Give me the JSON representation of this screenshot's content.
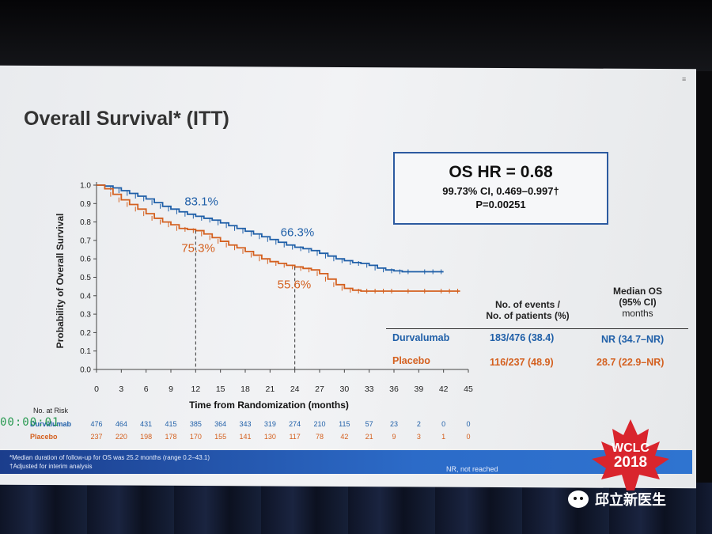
{
  "slide": {
    "title": "Overall Survival* (ITT)",
    "hr_box": {
      "hr": "OS HR = 0.68",
      "ci": "99.73% CI, 0.469–0.997†",
      "p": "P=0.00251"
    },
    "table": {
      "header_events": [
        "No. of events /",
        "No. of patients (%)"
      ],
      "header_median": [
        "Median OS",
        "(95% CI)",
        "months"
      ],
      "rows": [
        {
          "arm": "Durvalumab",
          "events": "183/476 (38.4)",
          "median": "NR (34.7–NR)",
          "color": "#1f5fa8"
        },
        {
          "arm": "Placebo",
          "events": "116/237 (48.9)",
          "median": "28.7 (22.9–NR)",
          "color": "#d4601f"
        }
      ]
    },
    "at_risk": {
      "title": "No. at Risk",
      "rows": [
        {
          "label": "Durvalumab",
          "color": "#1f5fa8",
          "values": [
            "476",
            "464",
            "431",
            "415",
            "385",
            "364",
            "343",
            "319",
            "274",
            "210",
            "115",
            "57",
            "23",
            "2",
            "0",
            "0"
          ]
        },
        {
          "label": "Placebo",
          "color": "#d4601f",
          "values": [
            "237",
            "220",
            "198",
            "178",
            "170",
            "155",
            "141",
            "130",
            "117",
            "78",
            "42",
            "21",
            "9",
            "3",
            "1",
            "0"
          ]
        }
      ]
    },
    "footnotes": [
      "*Median duration of follow-up for OS was 25.2 months (range 0.2–43.1)",
      "†Adjusted for interim analysis"
    ],
    "nr_note": "NR, not reached",
    "logo": {
      "line1": "WCLC",
      "line2": "2018"
    },
    "timer": "00:00:01"
  },
  "watermark": "邱立新医生",
  "chart_data": {
    "type": "line",
    "xlabel": "Time from Randomization (months)",
    "ylabel": "Probability of Overall Survival",
    "xlim": [
      0,
      45
    ],
    "ylim": [
      0,
      1.0
    ],
    "xticks": [
      0,
      3,
      6,
      9,
      12,
      15,
      18,
      21,
      24,
      27,
      30,
      33,
      36,
      39,
      42,
      45
    ],
    "yticks": [
      "0.0",
      "0.1",
      "0.2",
      "0.3",
      "0.4",
      "0.5",
      "0.6",
      "0.7",
      "0.8",
      "0.9",
      "1.0"
    ],
    "series": [
      {
        "name": "Durvalumab",
        "color": "#1f5fa8",
        "x": [
          0,
          1,
          2,
          3,
          4,
          5,
          6,
          7,
          8,
          9,
          10,
          11,
          12,
          13,
          14,
          15,
          16,
          17,
          18,
          19,
          20,
          21,
          22,
          23,
          24,
          25,
          26,
          27,
          28,
          29,
          30,
          31,
          32,
          33,
          34,
          35,
          36,
          37,
          38,
          40,
          41,
          42
        ],
        "y": [
          1.0,
          0.995,
          0.985,
          0.97,
          0.955,
          0.94,
          0.925,
          0.905,
          0.885,
          0.87,
          0.855,
          0.842,
          0.831,
          0.82,
          0.81,
          0.795,
          0.78,
          0.765,
          0.75,
          0.735,
          0.72,
          0.705,
          0.69,
          0.675,
          0.663,
          0.655,
          0.645,
          0.63,
          0.615,
          0.6,
          0.59,
          0.58,
          0.575,
          0.565,
          0.55,
          0.54,
          0.535,
          0.53,
          0.53,
          0.53,
          0.53,
          0.53
        ]
      },
      {
        "name": "Placebo",
        "color": "#d4601f",
        "x": [
          0,
          1,
          2,
          3,
          4,
          5,
          6,
          7,
          8,
          9,
          10,
          11,
          12,
          13,
          14,
          15,
          16,
          17,
          18,
          19,
          20,
          21,
          22,
          23,
          24,
          25,
          26,
          27,
          28,
          29,
          30,
          31,
          32,
          33,
          34,
          35,
          36,
          38,
          40,
          42,
          43,
          44
        ],
        "y": [
          1.0,
          0.98,
          0.95,
          0.92,
          0.895,
          0.87,
          0.845,
          0.82,
          0.8,
          0.785,
          0.765,
          0.76,
          0.753,
          0.735,
          0.715,
          0.695,
          0.675,
          0.66,
          0.64,
          0.62,
          0.6,
          0.585,
          0.575,
          0.565,
          0.556,
          0.548,
          0.54,
          0.52,
          0.49,
          0.46,
          0.44,
          0.43,
          0.425,
          0.425,
          0.425,
          0.425,
          0.425,
          0.425,
          0.425,
          0.425,
          0.425,
          0.425
        ]
      }
    ],
    "annotations": [
      {
        "text": "83.1%",
        "x": 12,
        "y": 0.831,
        "series": "Durvalumab"
      },
      {
        "text": "75.3%",
        "x": 12,
        "y": 0.753,
        "series": "Placebo"
      },
      {
        "text": "66.3%",
        "x": 24,
        "y": 0.663,
        "series": "Durvalumab"
      },
      {
        "text": "55.6%",
        "x": 24,
        "y": 0.556,
        "series": "Placebo"
      }
    ]
  }
}
